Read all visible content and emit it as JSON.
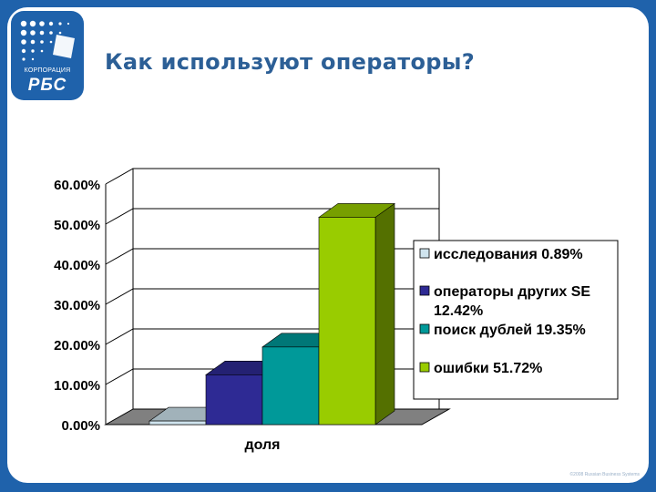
{
  "title": "Как используют операторы?",
  "logo": {
    "small_text": "КОРПОРАЦИЯ",
    "brand_text": "РБС"
  },
  "footer": "©2008 Russian Business Systems",
  "colors": {
    "background_blue": "#1f62ab",
    "title_blue": "#2c5f96",
    "series": [
      "#cfe4ee",
      "#2e2a94",
      "#009999",
      "#99cc00"
    ]
  },
  "chart_data": {
    "type": "bar",
    "categories": [
      "доля"
    ],
    "xlabel": "доля",
    "ylim": [
      0,
      0.6
    ],
    "y_ticks": [
      "0.00%",
      "10.00%",
      "20.00%",
      "30.00%",
      "40.00%",
      "50.00%",
      "60.00%"
    ],
    "three_d": true,
    "legend_position": "right",
    "series": [
      {
        "name": "исследования 0.89%",
        "value": 0.0089,
        "color": "#cfe4ee"
      },
      {
        "name": "операторы других SE 12.42%",
        "value": 0.1242,
        "color": "#2e2a94"
      },
      {
        "name": "поиск дублей 19.35%",
        "value": 0.1935,
        "color": "#009999"
      },
      {
        "name": "ошибки 51.72%",
        "value": 0.5172,
        "color": "#99cc00"
      }
    ]
  }
}
